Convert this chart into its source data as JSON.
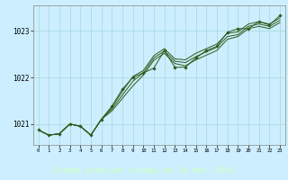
{
  "title": "Graphe pression niveau de la mer (hPa)",
  "bg_color": "#cceeff",
  "plot_bg": "#cceeff",
  "bottom_bar_color": "#2d5a27",
  "label_color": "#ccffcc",
  "grid_color": "#aadddd",
  "line_color": "#2d5a1a",
  "marker_color": "#2d5a1a",
  "xlim": [
    -0.5,
    23.5
  ],
  "ylim": [
    1020.55,
    1023.55
  ],
  "yticks": [
    1021,
    1022,
    1023
  ],
  "xticks": [
    0,
    1,
    2,
    3,
    4,
    5,
    6,
    7,
    8,
    9,
    10,
    11,
    12,
    13,
    14,
    15,
    16,
    17,
    18,
    19,
    20,
    21,
    22,
    23
  ],
  "series1": [
    1020.87,
    1020.76,
    1020.79,
    1021.0,
    1020.95,
    1020.76,
    1021.1,
    1021.28,
    1021.55,
    1021.82,
    1022.05,
    1022.37,
    1022.52,
    1022.3,
    1022.25,
    1022.38,
    1022.48,
    1022.58,
    1022.82,
    1022.88,
    1023.05,
    1023.1,
    1023.05,
    1023.18
  ],
  "series2": [
    1020.87,
    1020.76,
    1020.79,
    1021.0,
    1020.95,
    1020.76,
    1021.1,
    1021.32,
    1021.62,
    1021.92,
    1022.1,
    1022.42,
    1022.57,
    1022.35,
    1022.32,
    1022.45,
    1022.55,
    1022.65,
    1022.88,
    1022.92,
    1023.1,
    1023.15,
    1023.1,
    1023.23
  ],
  "series3": [
    1020.87,
    1020.76,
    1020.79,
    1021.0,
    1020.95,
    1020.76,
    1021.1,
    1021.36,
    1021.7,
    1022.02,
    1022.15,
    1022.47,
    1022.62,
    1022.4,
    1022.38,
    1022.52,
    1022.62,
    1022.72,
    1022.95,
    1022.98,
    1023.15,
    1023.2,
    1023.15,
    1023.28
  ],
  "series_dot": [
    1020.87,
    1020.76,
    1020.79,
    1021.0,
    1020.95,
    1020.76,
    1021.1,
    1021.38,
    1021.75,
    1022.0,
    1022.1,
    1022.2,
    1022.58,
    1022.22,
    1022.22,
    1022.42,
    1022.58,
    1022.67,
    1022.97,
    1023.05,
    1023.05,
    1023.2,
    1023.13,
    1023.33
  ]
}
